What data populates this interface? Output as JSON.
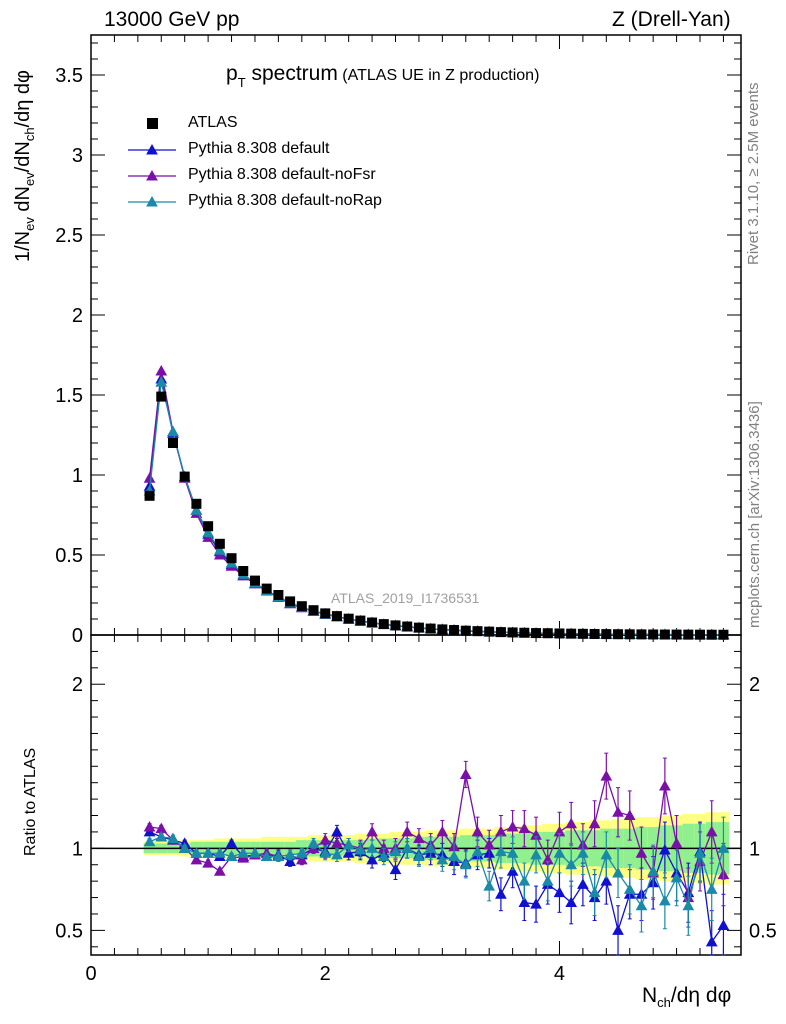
{
  "header": {
    "left": "13000 GeV pp",
    "right": "Z (Drell-Yan)"
  },
  "side_labels": {
    "upper": "Rivet 3.1.10, ≥ 2.5M events",
    "lower": "mcplots.cern.ch [arXiv:1306.3436]"
  },
  "plot_title": {
    "main": "p",
    "sub": "T",
    "tail": " spectrum",
    "note": "(ATLAS UE in Z production)"
  },
  "watermark": "ATLAS_2019_I1736531",
  "ylabel_main": "1/N_ev dN_ev/dN_ch/dη dφ",
  "ylabel_ratio": "Ratio to ATLAS",
  "xlabel": "N_ch/dη dφ",
  "colors": {
    "data": "#000000",
    "default": "#1010d0",
    "noFsr": "#7a10a8",
    "noRap": "#1a8aa8",
    "band_yellow": "#ffff80",
    "band_green": "#90f090"
  },
  "chart_data": [
    {
      "type": "scatter",
      "panel": "main",
      "x": [
        0.5,
        0.6,
        0.7,
        0.8,
        0.9,
        1.0,
        1.1,
        1.2,
        1.3,
        1.4,
        1.5,
        1.6,
        1.7,
        1.8,
        1.9,
        2.0,
        2.1,
        2.2,
        2.3,
        2.4,
        2.5,
        2.6,
        2.7,
        2.8,
        2.9,
        3.0,
        3.1,
        3.2,
        3.3,
        3.4,
        3.5,
        3.6,
        3.7,
        3.8,
        3.9,
        4.0,
        4.1,
        4.2,
        4.3,
        4.4,
        4.5,
        4.6,
        4.7,
        4.8,
        4.9,
        5.0,
        5.1,
        5.2,
        5.3,
        5.4
      ],
      "xlim": [
        0,
        5.55
      ],
      "ylim": [
        0,
        3.75
      ],
      "xticks": [
        0,
        2,
        4
      ],
      "yticks": [
        0,
        0.5,
        1,
        1.5,
        2,
        2.5,
        3,
        3.5
      ],
      "series": [
        {
          "name": "ATLAS",
          "marker": "square",
          "values": [
            0.87,
            1.49,
            1.2,
            0.99,
            0.82,
            0.68,
            0.57,
            0.48,
            0.4,
            0.34,
            0.29,
            0.25,
            0.21,
            0.18,
            0.155,
            0.135,
            0.118,
            0.102,
            0.09,
            0.078,
            0.068,
            0.06,
            0.053,
            0.046,
            0.04,
            0.035,
            0.031,
            0.027,
            0.024,
            0.021,
            0.018,
            0.016,
            0.014,
            0.012,
            0.011,
            0.0095,
            0.0083,
            0.0073,
            0.0064,
            0.0056,
            0.0049,
            0.0043,
            0.0038,
            0.0033,
            0.0029,
            0.0026,
            0.0023,
            0.002,
            0.0018,
            0.0016
          ]
        },
        {
          "name": "Pythia 8.308 default",
          "marker": "triangle",
          "values": [
            0.93,
            1.6,
            1.26,
            0.99,
            0.78,
            0.63,
            0.52,
            0.44,
            0.37,
            0.32,
            0.275,
            0.235,
            0.195,
            0.17,
            0.148,
            0.13,
            0.114,
            0.099,
            0.087,
            0.076,
            0.066,
            0.058,
            0.051,
            0.044,
            0.038,
            0.034,
            0.03,
            0.026,
            0.023,
            0.02,
            0.017,
            0.015,
            0.013,
            0.011,
            0.01,
            0.009,
            0.008,
            0.007,
            0.006,
            0.005,
            0.0045,
            0.004,
            0.0035,
            0.003,
            0.0027,
            0.0024,
            0.0021,
            0.0018,
            0.0016,
            0.0014
          ]
        },
        {
          "name": "Pythia 8.308 default-noFsr",
          "marker": "triangle",
          "values": [
            0.98,
            1.65,
            1.27,
            0.98,
            0.76,
            0.61,
            0.5,
            0.43,
            0.37,
            0.32,
            0.275,
            0.24,
            0.2,
            0.173,
            0.15,
            0.132,
            0.116,
            0.1,
            0.088,
            0.077,
            0.067,
            0.059,
            0.052,
            0.045,
            0.039,
            0.034,
            0.03,
            0.026,
            0.023,
            0.02,
            0.017,
            0.015,
            0.013,
            0.011,
            0.01,
            0.009,
            0.008,
            0.007,
            0.006,
            0.005,
            0.0045,
            0.004,
            0.0035,
            0.003,
            0.0027,
            0.0024,
            0.0021,
            0.0018,
            0.0016,
            0.0014
          ]
        },
        {
          "name": "Pythia 8.308 default-noRap",
          "marker": "triangle",
          "values": [
            0.9,
            1.58,
            1.27,
            0.99,
            0.78,
            0.64,
            0.53,
            0.45,
            0.38,
            0.325,
            0.278,
            0.238,
            0.2,
            0.172,
            0.149,
            0.13,
            0.114,
            0.099,
            0.087,
            0.076,
            0.066,
            0.058,
            0.051,
            0.044,
            0.038,
            0.034,
            0.03,
            0.026,
            0.023,
            0.02,
            0.017,
            0.015,
            0.013,
            0.011,
            0.01,
            0.009,
            0.008,
            0.007,
            0.006,
            0.005,
            0.0045,
            0.004,
            0.0035,
            0.003,
            0.0027,
            0.0024,
            0.0021,
            0.0018,
            0.0016,
            0.0014
          ]
        }
      ]
    },
    {
      "type": "scatter",
      "panel": "ratio",
      "x": [
        0.5,
        0.6,
        0.7,
        0.8,
        0.9,
        1.0,
        1.1,
        1.2,
        1.3,
        1.4,
        1.5,
        1.6,
        1.7,
        1.8,
        1.9,
        2.0,
        2.1,
        2.2,
        2.3,
        2.4,
        2.5,
        2.6,
        2.7,
        2.8,
        2.9,
        3.0,
        3.1,
        3.2,
        3.3,
        3.4,
        3.5,
        3.6,
        3.7,
        3.8,
        3.9,
        4.0,
        4.1,
        4.2,
        4.3,
        4.4,
        4.5,
        4.6,
        4.7,
        4.8,
        4.9,
        5.0,
        5.1,
        5.2,
        5.3,
        5.4
      ],
      "xlim": [
        0,
        5.55
      ],
      "ylim": [
        0.35,
        2.3
      ],
      "yticks": [
        0.5,
        1,
        2
      ],
      "reference": 1,
      "band_inner": [
        0.03,
        0.03,
        0.03,
        0.03,
        0.04,
        0.04,
        0.04,
        0.04,
        0.04,
        0.04,
        0.04,
        0.04,
        0.04,
        0.05,
        0.05,
        0.05,
        0.05,
        0.05,
        0.05,
        0.06,
        0.06,
        0.06,
        0.06,
        0.07,
        0.07,
        0.07,
        0.07,
        0.08,
        0.08,
        0.08,
        0.09,
        0.09,
        0.09,
        0.1,
        0.1,
        0.1,
        0.11,
        0.11,
        0.11,
        0.12,
        0.12,
        0.12,
        0.13,
        0.13,
        0.14,
        0.14,
        0.15,
        0.15,
        0.16,
        0.16
      ],
      "band_outer": [
        0.04,
        0.04,
        0.04,
        0.05,
        0.05,
        0.05,
        0.06,
        0.06,
        0.06,
        0.06,
        0.07,
        0.07,
        0.07,
        0.07,
        0.08,
        0.08,
        0.08,
        0.08,
        0.09,
        0.09,
        0.09,
        0.1,
        0.1,
        0.1,
        0.11,
        0.11,
        0.11,
        0.12,
        0.12,
        0.12,
        0.13,
        0.13,
        0.14,
        0.14,
        0.15,
        0.15,
        0.16,
        0.16,
        0.17,
        0.17,
        0.18,
        0.18,
        0.19,
        0.19,
        0.2,
        0.2,
        0.21,
        0.21,
        0.22,
        0.22
      ],
      "series": [
        {
          "name": "Pythia 8.308 default",
          "values": [
            1.1,
            1.07,
            1.05,
            1.03,
            0.97,
            0.97,
            0.95,
            1.03,
            0.95,
            0.96,
            0.95,
            0.96,
            0.92,
            0.96,
            1.0,
            0.98,
            1.1,
            0.97,
            0.98,
            0.93,
            0.97,
            0.87,
            1.0,
            0.96,
            0.97,
            0.96,
            0.92,
            0.91,
            0.96,
            0.97,
            0.72,
            0.86,
            0.67,
            0.66,
            0.78,
            0.73,
            0.67,
            0.78,
            0.7,
            0.8,
            0.5,
            0.72,
            0.72,
            0.79,
            0.99,
            0.85,
            0.73,
            0.98,
            0.43,
            0.53
          ],
          "errors": [
            0.02,
            0.02,
            0.02,
            0.02,
            0.02,
            0.02,
            0.02,
            0.02,
            0.02,
            0.02,
            0.02,
            0.03,
            0.03,
            0.03,
            0.03,
            0.04,
            0.04,
            0.04,
            0.05,
            0.05,
            0.05,
            0.06,
            0.06,
            0.06,
            0.07,
            0.07,
            0.08,
            0.08,
            0.09,
            0.09,
            0.1,
            0.1,
            0.11,
            0.11,
            0.12,
            0.12,
            0.13,
            0.13,
            0.14,
            0.14,
            0.15,
            0.15,
            0.16,
            0.16,
            0.17,
            0.17,
            0.18,
            0.18,
            0.19,
            0.19
          ]
        },
        {
          "name": "Pythia 8.308 default-noFsr",
          "values": [
            1.13,
            1.12,
            1.05,
            1.0,
            0.93,
            0.91,
            0.86,
            0.95,
            0.94,
            0.96,
            0.97,
            0.95,
            0.96,
            0.93,
            1.0,
            1.05,
            1.03,
            1.02,
            1.0,
            1.1,
            1.0,
            1.0,
            1.1,
            1.06,
            1.02,
            1.1,
            1.01,
            1.45,
            1.1,
            1.02,
            1.1,
            1.13,
            1.12,
            1.08,
            0.93,
            1.1,
            1.15,
            1.02,
            1.15,
            1.44,
            1.22,
            1.2,
            0.97,
            0.85,
            1.38,
            1.03,
            0.7,
            0.92,
            1.1,
            0.84
          ],
          "errors": [
            0.02,
            0.02,
            0.02,
            0.02,
            0.02,
            0.02,
            0.02,
            0.02,
            0.02,
            0.02,
            0.02,
            0.03,
            0.03,
            0.03,
            0.03,
            0.04,
            0.04,
            0.04,
            0.05,
            0.05,
            0.05,
            0.06,
            0.06,
            0.06,
            0.07,
            0.07,
            0.08,
            0.08,
            0.09,
            0.09,
            0.1,
            0.1,
            0.11,
            0.11,
            0.12,
            0.12,
            0.13,
            0.13,
            0.14,
            0.14,
            0.15,
            0.15,
            0.16,
            0.16,
            0.17,
            0.17,
            0.18,
            0.18,
            0.19,
            0.19
          ]
        },
        {
          "name": "Pythia 8.308 default-noRap",
          "values": [
            1.04,
            1.07,
            1.06,
            1.0,
            0.97,
            0.97,
            0.97,
            0.95,
            0.97,
            0.97,
            0.95,
            0.95,
            0.96,
            0.97,
            1.03,
            0.97,
            0.96,
            1.02,
            0.99,
            1.0,
            0.95,
            0.98,
            1.0,
            0.95,
            1.0,
            0.93,
            0.95,
            0.9,
            0.98,
            0.77,
            0.98,
            0.97,
            0.8,
            0.96,
            0.8,
            0.97,
            0.9,
            0.97,
            0.73,
            0.96,
            0.85,
            0.75,
            0.65,
            0.86,
            0.68,
            0.82,
            0.65,
            0.97,
            0.75,
            1.0
          ],
          "errors": [
            0.02,
            0.02,
            0.02,
            0.02,
            0.02,
            0.02,
            0.02,
            0.02,
            0.02,
            0.02,
            0.02,
            0.03,
            0.03,
            0.03,
            0.03,
            0.04,
            0.04,
            0.04,
            0.05,
            0.05,
            0.05,
            0.06,
            0.06,
            0.06,
            0.07,
            0.07,
            0.08,
            0.08,
            0.09,
            0.09,
            0.1,
            0.1,
            0.11,
            0.11,
            0.12,
            0.12,
            0.13,
            0.13,
            0.14,
            0.14,
            0.15,
            0.15,
            0.16,
            0.16,
            0.17,
            0.17,
            0.18,
            0.18,
            0.19,
            0.19
          ]
        }
      ]
    }
  ]
}
